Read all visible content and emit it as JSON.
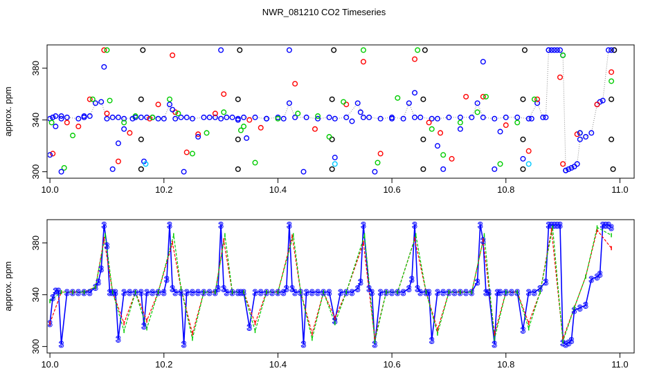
{
  "title": "NWR_081210  CO2 Timeseries",
  "colors": {
    "black": "#000000",
    "red": "#ff0000",
    "green": "#00cc00",
    "blue": "#0000ff",
    "cyan": "#00c8ff",
    "gray": "#888888"
  },
  "chart_data": [
    {
      "type": "scatter",
      "title": "",
      "xlabel": "",
      "ylabel": "approx. ppm",
      "xlim": [
        9.995,
        11.025
      ],
      "ylim": [
        295,
        398
      ],
      "x_ticks": [
        "10.0",
        "10.2",
        "10.4",
        "10.6",
        "10.8",
        "11.0"
      ],
      "y_ticks": [
        "300",
        "340",
        "380"
      ],
      "grid": false,
      "legend": "none",
      "series": [
        {
          "color": "black",
          "x": [
            10.16,
            10.16,
            10.16,
            10.163,
            10.33,
            10.33,
            10.33,
            10.333,
            10.495,
            10.495,
            10.495,
            10.498,
            10.655,
            10.655,
            10.655,
            10.658,
            10.83,
            10.83,
            10.83,
            10.833,
            10.985,
            10.985,
            10.988,
            10.99
          ],
          "y": [
            302,
            325,
            356,
            394,
            302,
            325,
            356,
            394,
            302,
            325,
            356,
            394,
            302,
            325,
            356,
            394,
            302,
            325,
            356,
            394,
            356,
            325,
            302,
            394
          ]
        },
        {
          "color": "red",
          "x": [
            10.005,
            10.03,
            10.05,
            10.07,
            10.095,
            10.1,
            10.12,
            10.14,
            10.175,
            10.19,
            10.215,
            10.22,
            10.24,
            10.26,
            10.29,
            10.305,
            10.35,
            10.37,
            10.43,
            10.465,
            10.52,
            10.55,
            10.58,
            10.64,
            10.665,
            10.685,
            10.705,
            10.73,
            10.76,
            10.8,
            10.84,
            10.855,
            10.895,
            10.9,
            10.925,
            10.96,
            10.985
          ],
          "y": [
            314,
            338,
            335,
            356,
            394,
            345,
            308,
            330,
            341,
            352,
            390,
            346,
            315,
            329,
            345,
            360,
            340,
            334,
            368,
            333,
            352,
            385,
            314,
            387,
            338,
            330,
            310,
            358,
            358,
            336,
            316,
            356,
            373,
            306,
            329,
            352,
            377
          ]
        },
        {
          "color": "green",
          "x": [
            10.003,
            10.025,
            10.04,
            10.075,
            10.1,
            10.105,
            10.13,
            10.15,
            10.18,
            10.21,
            10.225,
            10.25,
            10.275,
            10.305,
            10.335,
            10.34,
            10.36,
            10.4,
            10.435,
            10.47,
            10.49,
            10.515,
            10.55,
            10.575,
            10.61,
            10.645,
            10.67,
            10.69,
            10.72,
            10.75,
            10.765,
            10.79,
            10.82,
            10.85,
            10.9,
            10.93,
            10.985
          ],
          "y": [
            338,
            303,
            328,
            356,
            394,
            355,
            338,
            343,
            342,
            356,
            345,
            314,
            330,
            346,
            332,
            335,
            307,
            341,
            345,
            343,
            327,
            354,
            394,
            307,
            357,
            394,
            333,
            313,
            338,
            346,
            358,
            306,
            338,
            356,
            390,
            330,
            370
          ]
        },
        {
          "color": "blue",
          "x": [
            10.0,
            10.01,
            10.02,
            10.02,
            10.06,
            10.095,
            10.11,
            10.12,
            10.13,
            10.145,
            10.165,
            10.19,
            10.215,
            10.235,
            10.26,
            10.3,
            10.33,
            10.345,
            10.38,
            10.42,
            10.445,
            10.5,
            10.53,
            10.545,
            10.57,
            10.6,
            10.64,
            10.68,
            10.69,
            10.72,
            10.76,
            10.78,
            10.79,
            10.83,
            10.845,
            10.875,
            10.905,
            10.93,
            10.985
          ],
          "y": [
            313,
            335,
            300,
            341,
            343,
            381,
            302,
            322,
            333,
            341,
            308,
            341,
            348,
            300,
            327,
            394,
            340,
            326,
            341,
            394,
            300,
            311,
            339,
            346,
            300,
            341,
            361,
            320,
            302,
            333,
            385,
            302,
            331,
            310,
            341,
            394,
            301,
            330,
            394
          ]
        },
        {
          "color": "cyan",
          "x": [
            10.168,
            10.5,
            10.84
          ],
          "y": [
            306,
            306,
            306
          ]
        }
      ],
      "baseline": [
        {
          "x": [
            10.0,
            10.005,
            10.01,
            10.02,
            10.03,
            10.05,
            10.06,
            10.07,
            10.08,
            10.09,
            10.1,
            10.11,
            10.12,
            10.13,
            10.15,
            10.16,
            10.17,
            10.18,
            10.2,
            10.21,
            10.22,
            10.23,
            10.24,
            10.25,
            10.27,
            10.28,
            10.29,
            10.3,
            10.31,
            10.32,
            10.33,
            10.34,
            10.36,
            10.38,
            10.4,
            10.41,
            10.42,
            10.43,
            10.45,
            10.47,
            10.49,
            10.5,
            10.52,
            10.54,
            10.55,
            10.56,
            10.58,
            10.6,
            10.62,
            10.63,
            10.64,
            10.65,
            10.67,
            10.68,
            10.7,
            10.72,
            10.74,
            10.75,
            10.76,
            10.78,
            10.8,
            10.82,
            10.84,
            10.855,
            10.865,
            10.87,
            10.875,
            10.88,
            10.885,
            10.89,
            10.895,
            10.9,
            10.905,
            10.91,
            10.915,
            10.92,
            10.925,
            10.93,
            10.94,
            10.95,
            10.96,
            10.965,
            10.97,
            10.98,
            10.99
          ],
          "y": [
            341,
            342,
            343,
            343,
            342,
            341,
            342,
            343,
            353,
            354,
            341,
            342,
            342,
            341,
            342,
            342,
            342,
            342,
            341,
            352,
            341,
            342,
            342,
            341,
            342,
            342,
            342,
            341,
            342,
            342,
            341,
            342,
            342,
            341,
            342,
            341,
            353,
            342,
            342,
            341,
            342,
            341,
            342,
            353,
            342,
            342,
            341,
            342,
            341,
            353,
            342,
            342,
            341,
            341,
            342,
            342,
            342,
            353,
            342,
            341,
            342,
            342,
            341,
            353,
            342,
            342,
            394,
            394,
            394,
            394,
            394,
            390,
            301,
            302,
            303,
            304,
            306,
            325,
            327,
            330,
            352,
            354,
            355,
            394,
            394
          ]
        }
      ]
    },
    {
      "type": "line",
      "title": "",
      "xlabel": "",
      "ylabel": "approx. ppm",
      "xlim": [
        9.995,
        11.025
      ],
      "ylim": [
        295,
        398
      ],
      "x_ticks": [
        "10.0",
        "10.2",
        "10.4",
        "10.6",
        "10.8",
        "11.0"
      ],
      "y_ticks": [
        "300",
        "340",
        "380"
      ],
      "grid": false,
      "legend": "none",
      "point_label": "3",
      "series": [
        {
          "color": "blue",
          "x": [
            10.0,
            10.005,
            10.01,
            10.015,
            10.02,
            10.03,
            10.04,
            10.05,
            10.06,
            10.07,
            10.08,
            10.085,
            10.09,
            10.095,
            10.1,
            10.105,
            10.11,
            10.115,
            10.12,
            10.13,
            10.14,
            10.15,
            10.16,
            10.165,
            10.17,
            10.18,
            10.19,
            10.2,
            10.205,
            10.21,
            10.215,
            10.22,
            10.23,
            10.235,
            10.24,
            10.25,
            10.26,
            10.27,
            10.28,
            10.29,
            10.295,
            10.3,
            10.305,
            10.31,
            10.32,
            10.33,
            10.335,
            10.34,
            10.35,
            10.36,
            10.37,
            10.38,
            10.39,
            10.4,
            10.41,
            10.415,
            10.42,
            10.425,
            10.43,
            10.44,
            10.445,
            10.45,
            10.46,
            10.47,
            10.48,
            10.49,
            10.5,
            10.51,
            10.52,
            10.53,
            10.54,
            10.545,
            10.55,
            10.56,
            10.565,
            10.57,
            10.58,
            10.59,
            10.6,
            10.61,
            10.62,
            10.63,
            10.635,
            10.64,
            10.645,
            10.65,
            10.66,
            10.665,
            10.67,
            10.68,
            10.69,
            10.7,
            10.71,
            10.72,
            10.73,
            10.74,
            10.75,
            10.755,
            10.76,
            10.765,
            10.77,
            10.78,
            10.785,
            10.79,
            10.8,
            10.81,
            10.82,
            10.83,
            10.84,
            10.85,
            10.86,
            10.87,
            10.875,
            10.88,
            10.885,
            10.89,
            10.895,
            10.9,
            10.905,
            10.91,
            10.915,
            10.92,
            10.93,
            10.94,
            10.95,
            10.96,
            10.965,
            10.97,
            10.975,
            10.98,
            10.985
          ],
          "y": [
            318,
            338,
            343,
            343,
            302,
            342,
            342,
            342,
            342,
            342,
            346,
            350,
            360,
            394,
            378,
            342,
            342,
            342,
            306,
            342,
            342,
            342,
            342,
            316,
            342,
            342,
            342,
            342,
            352,
            394,
            345,
            342,
            342,
            302,
            342,
            342,
            342,
            342,
            342,
            342,
            345,
            394,
            345,
            342,
            342,
            342,
            342,
            342,
            315,
            342,
            342,
            342,
            342,
            342,
            342,
            345,
            394,
            345,
            342,
            342,
            302,
            342,
            342,
            342,
            342,
            342,
            320,
            342,
            342,
            342,
            345,
            350,
            394,
            345,
            342,
            302,
            342,
            342,
            342,
            342,
            342,
            345,
            352,
            394,
            345,
            342,
            342,
            342,
            305,
            342,
            342,
            342,
            342,
            342,
            342,
            342,
            350,
            394,
            382,
            342,
            342,
            302,
            342,
            342,
            342,
            342,
            342,
            313,
            342,
            342,
            345,
            350,
            394,
            394,
            394,
            394,
            394,
            303,
            302,
            303,
            305,
            328,
            330,
            332,
            352,
            354,
            356,
            394,
            394,
            394,
            392
          ]
        },
        {
          "color": "red",
          "x": [
            10.0,
            10.02,
            10.04,
            10.06,
            10.08,
            10.095,
            10.11,
            10.13,
            10.15,
            10.17,
            10.19,
            10.215,
            10.23,
            10.25,
            10.27,
            10.29,
            10.305,
            10.32,
            10.34,
            10.36,
            10.38,
            10.4,
            10.425,
            10.44,
            10.46,
            10.48,
            10.5,
            10.52,
            10.55,
            10.57,
            10.59,
            10.61,
            10.64,
            10.66,
            10.68,
            10.7,
            10.72,
            10.74,
            10.76,
            10.78,
            10.8,
            10.82,
            10.84,
            10.86,
            10.88,
            10.9,
            10.92,
            10.94,
            10.96,
            10.985
          ],
          "y": [
            318,
            342,
            342,
            342,
            346,
            383,
            342,
            318,
            342,
            320,
            342,
            380,
            345,
            310,
            342,
            342,
            382,
            342,
            342,
            318,
            342,
            342,
            385,
            342,
            310,
            342,
            322,
            342,
            380,
            306,
            342,
            342,
            383,
            342,
            313,
            342,
            342,
            342,
            382,
            310,
            342,
            342,
            318,
            342,
            390,
            306,
            330,
            354,
            390,
            376
          ]
        },
        {
          "color": "green",
          "x": [
            10.0,
            10.02,
            10.04,
            10.06,
            10.08,
            10.097,
            10.11,
            10.13,
            10.15,
            10.17,
            10.19,
            10.217,
            10.23,
            10.25,
            10.27,
            10.29,
            10.307,
            10.32,
            10.34,
            10.36,
            10.38,
            10.4,
            10.427,
            10.44,
            10.46,
            10.48,
            10.5,
            10.52,
            10.552,
            10.57,
            10.59,
            10.61,
            10.642,
            10.66,
            10.68,
            10.7,
            10.72,
            10.74,
            10.762,
            10.78,
            10.8,
            10.82,
            10.84,
            10.86,
            10.882,
            10.9,
            10.92,
            10.94,
            10.96,
            10.985
          ],
          "y": [
            335,
            342,
            342,
            342,
            346,
            386,
            342,
            312,
            342,
            314,
            342,
            386,
            345,
            306,
            342,
            342,
            386,
            342,
            342,
            312,
            342,
            342,
            386,
            342,
            306,
            342,
            318,
            342,
            386,
            304,
            342,
            342,
            386,
            342,
            310,
            342,
            342,
            342,
            386,
            306,
            342,
            342,
            314,
            342,
            392,
            304,
            330,
            354,
            392,
            386
          ]
        }
      ]
    }
  ]
}
